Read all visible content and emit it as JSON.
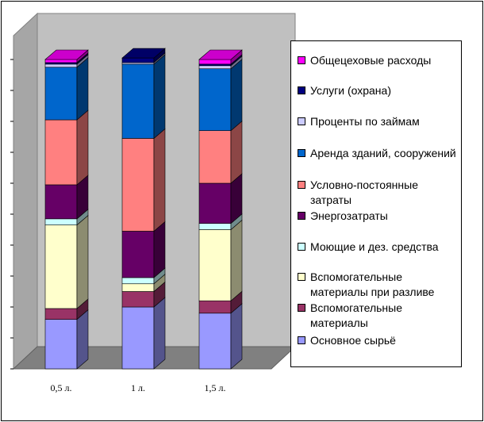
{
  "chart_data": {
    "type": "bar",
    "stacked": true,
    "three_d": true,
    "categories": [
      "0,5 л.",
      "1 л.",
      "1,5 л."
    ],
    "ylim": [
      0,
      100
    ],
    "grid": false,
    "legend_position": "right",
    "series": [
      {
        "name": "Основное сырьё",
        "color": "#9999ff",
        "values": [
          16,
          20,
          18
        ]
      },
      {
        "name": "Вспомогательные материалы",
        "color": "#993366",
        "values": [
          3.5,
          5,
          4
        ]
      },
      {
        "name": "Вспомогательные материалы при разливе",
        "color": "#ffffcc",
        "values": [
          27,
          2.5,
          23
        ]
      },
      {
        "name": "Моющие и дез. средства",
        "color": "#ccffff",
        "values": [
          2,
          2,
          2
        ]
      },
      {
        "name": "Энергозатраты",
        "color": "#660066",
        "values": [
          11,
          15,
          13
        ]
      },
      {
        "name": "Условно-постоянные затраты",
        "color": "#ff8080",
        "values": [
          21,
          30,
          17
        ]
      },
      {
        "name": "Аренда зданий, сооружений",
        "color": "#0066cc",
        "values": [
          17,
          24,
          20
        ]
      },
      {
        "name": "Проценты по займам",
        "color": "#ccccff",
        "values": [
          1,
          0.5,
          1
        ]
      },
      {
        "name": "Услуги (охрана)",
        "color": "#000080",
        "values": [
          0.5,
          1.5,
          0.5
        ]
      },
      {
        "name": "Общецеховые расходы",
        "color": "#ff00ff",
        "values": [
          1,
          0,
          1.5
        ]
      }
    ]
  }
}
